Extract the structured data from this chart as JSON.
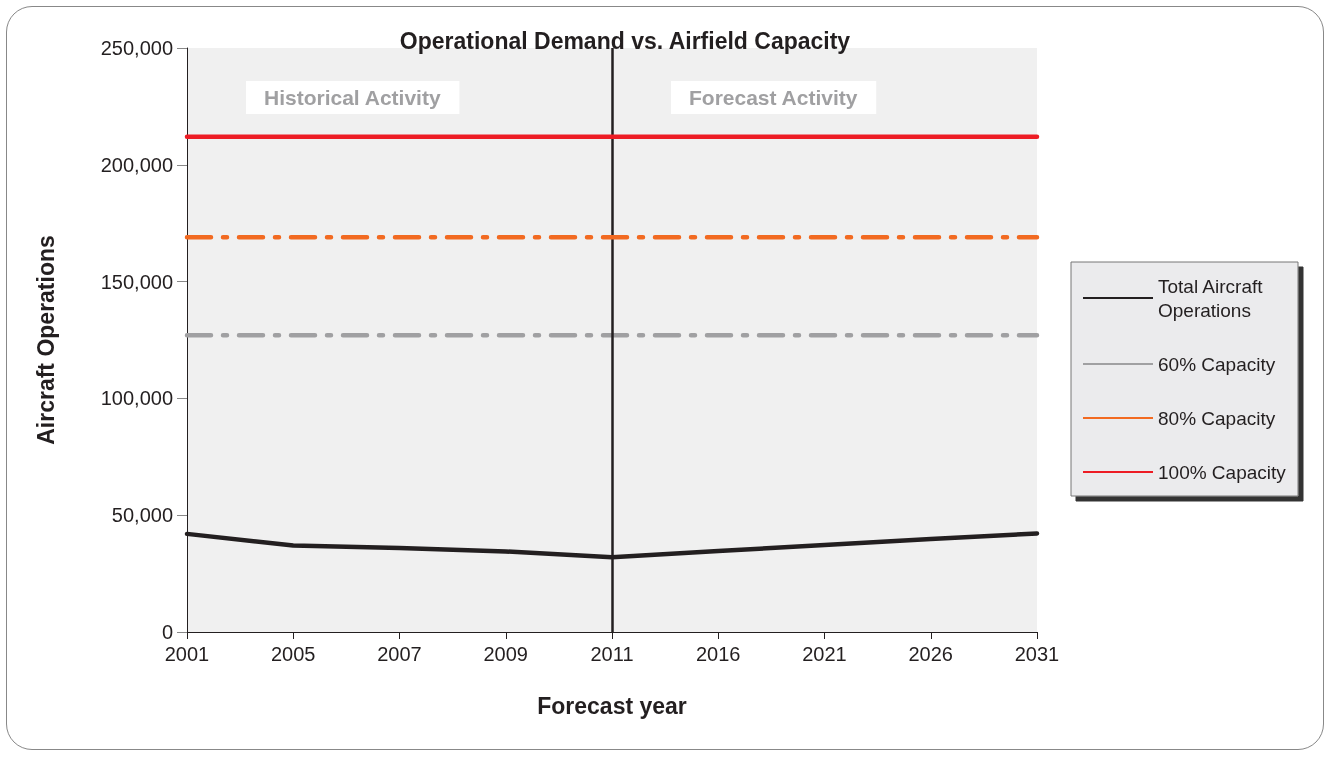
{
  "chart_data": {
    "type": "line",
    "title": "Operational Demand vs. Airfield Capacity",
    "xlabel": "Forecast year",
    "ylabel": "Aircraft Operations",
    "categories": [
      "2001",
      "2005",
      "2007",
      "2009",
      "2011",
      "2016",
      "2021",
      "2026",
      "2031"
    ],
    "series": [
      {
        "name": "Total Aircraft Operations",
        "color": "#231f20",
        "line_style": "solid",
        "values": [
          42000,
          37000,
          36000,
          34500,
          32000,
          34700,
          37200,
          39800,
          42200
        ]
      },
      {
        "name": "60% Capacity",
        "color": "#a0a0a2",
        "line_style": "dashed",
        "values": [
          127000,
          127000,
          127000,
          127000,
          127000,
          127000,
          127000,
          127000,
          127000
        ]
      },
      {
        "name": "80% Capacity",
        "color": "#f26a21",
        "line_style": "dashed",
        "values": [
          169000,
          169000,
          169000,
          169000,
          169000,
          169000,
          169000,
          169000,
          169000
        ]
      },
      {
        "name": "100% Capacity",
        "color": "#ed1c24",
        "line_style": "solid",
        "values": [
          212000,
          212000,
          212000,
          212000,
          212000,
          212000,
          212000,
          212000,
          212000
        ]
      }
    ],
    "ylim": [
      0,
      250000
    ],
    "yticks": [
      0,
      {
        "value": 50000,
        "label": "50,000"
      },
      {
        "value": 100000,
        "label": "100,000"
      },
      {
        "value": 150000,
        "label": "150,000"
      },
      {
        "value": 200000,
        "label": "200,000"
      },
      {
        "value": 250000,
        "label": "250,000"
      }
    ],
    "ref_lines": [
      {
        "axis": "x",
        "value": "2011",
        "color": "#231f20"
      }
    ],
    "annotations": [
      "Historical Activity",
      "Forecast Activity"
    ],
    "grid": false,
    "legend": "right",
    "marker": "none"
  }
}
